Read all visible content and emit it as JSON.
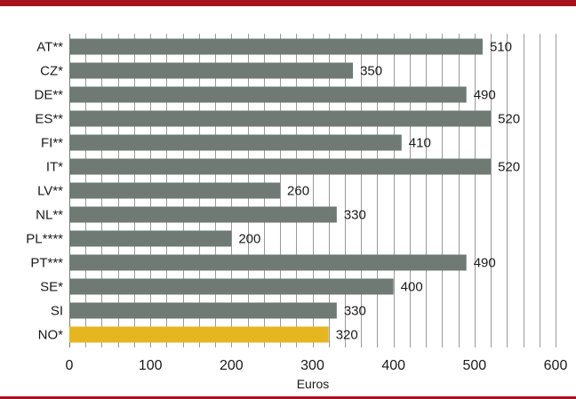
{
  "colors": {
    "top_bar": "#a8121f",
    "bottom_bar": "#a8121f",
    "bar": "#6e7a73",
    "highlight_bar": "#e6b621",
    "grid": "#9a9a9a"
  },
  "chart_data": {
    "type": "bar",
    "orientation": "horizontal",
    "categories": [
      "AT**",
      "CZ*",
      "DE**",
      "ES**",
      "FI**",
      "IT*",
      "LV**",
      "NL**",
      "PL****",
      "PT***",
      "SE*",
      "SI",
      "NO*"
    ],
    "values": [
      510,
      350,
      490,
      520,
      410,
      520,
      260,
      330,
      200,
      490,
      400,
      330,
      320
    ],
    "highlight_category": "NO*",
    "xlabel": "Euros",
    "xlim": [
      0,
      600
    ],
    "xticks": [
      0,
      100,
      200,
      300,
      400,
      500,
      600
    ],
    "grid": "vertical",
    "legend": "none"
  }
}
